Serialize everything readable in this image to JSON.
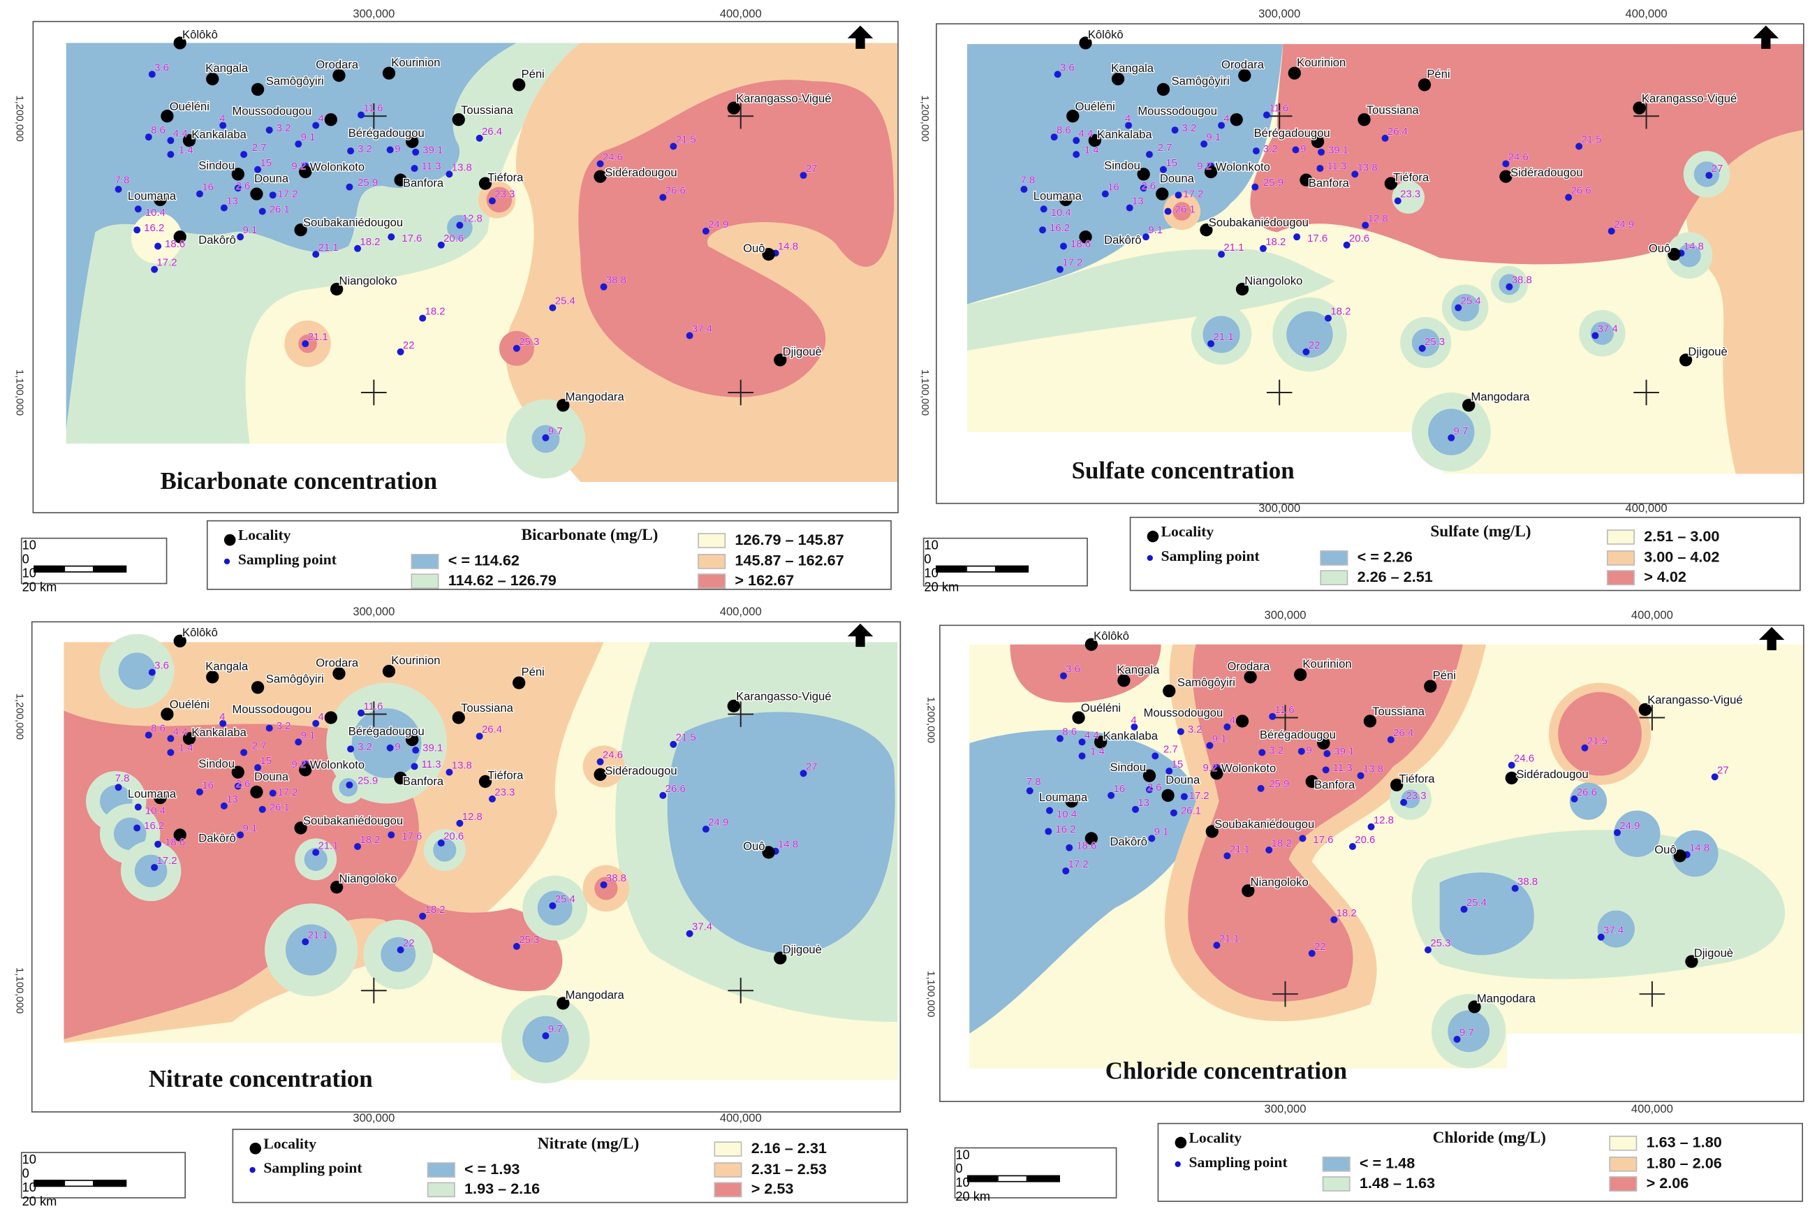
{
  "axes": {
    "x_ticks": [
      "300,000",
      "400,000"
    ],
    "y_ticks": [
      "1,200,000",
      "1,100,000"
    ]
  },
  "localities": [
    "Kôlôkô",
    "Kangala",
    "Orodara",
    "Kourinion",
    "Samôgôyiri",
    "Péni",
    "Ouéléni",
    "Moussodougou",
    "Toussiana",
    "Karangasso-Vigué",
    "Kankalaba",
    "Bérégadougou",
    "Sindou",
    "Wolonkoto",
    "Banfora",
    "Tiéfora",
    "Douna",
    "Sidéradougou",
    "Loumana",
    "Soubakaniédougou",
    "Dakôrô",
    "Ouô",
    "Niangoloko",
    "Djigouè",
    "Mangodara"
  ],
  "sampling_values": [
    "3.6",
    "4",
    "3.2",
    "4",
    "11.6",
    "8.6",
    "4.4",
    "1.4",
    "2.7",
    "9.1",
    "3.2",
    "9",
    "39.1",
    "26.4",
    "11.3",
    "13.8",
    "15",
    "9.2",
    "25.9",
    "7.8",
    "16",
    "2.6",
    "17.2",
    "10.4",
    "13",
    "26.1",
    "23.3",
    "24.6",
    "21.5",
    "27",
    "26.6",
    "16.2",
    "18.6",
    "9.1",
    "12.8",
    "17.6",
    "20.6",
    "21.1",
    "18.2",
    "17.2",
    "24.9",
    "14.8",
    "38.8",
    "25.4",
    "18.2",
    "21.1",
    "22",
    "25.3",
    "37.4",
    "9.7"
  ],
  "colors": {
    "c1": "#8fbad8",
    "c2": "#d3ead2",
    "c3": "#fcfad8",
    "c4": "#f8cfa4",
    "c5": "#e8898a"
  },
  "panels": [
    {
      "title": "Bicarbonate concentration",
      "legend": {
        "locality": "Locality",
        "sampling": "Sampling point",
        "param": "Bicarbonate (mg/L)",
        "classes": [
          "< = 114.62",
          "114.62  – 126.79",
          "126.79 – 145.87",
          "145.87 – 162.67",
          ">  162.67"
        ]
      },
      "scale": [
        "10",
        "0",
        "10",
        "20 km"
      ]
    },
    {
      "title": "Sulfate concentration",
      "legend": {
        "locality": "Locality",
        "sampling": "Sampling point",
        "param": "Sulfate (mg/L)",
        "classes": [
          "< = 2.26",
          "2.26  – 2.51",
          "2.51 – 3.00",
          "3.00 – 4.02",
          ">  4.02"
        ]
      },
      "scale": [
        "10",
        "0",
        "10",
        "20 km"
      ]
    },
    {
      "title": "Nitrate concentration",
      "legend": {
        "locality": "Locality",
        "sampling": "Sampling point",
        "param": "Nitrate (mg/L)",
        "classes": [
          "< = 1.93",
          "1.93 – 2.16",
          "2.16 – 2.31",
          "2.31 – 2.53",
          ">  2.53"
        ]
      },
      "scale": [
        "10",
        "0",
        "10",
        "20 km"
      ]
    },
    {
      "title": "Chloride concentration",
      "legend": {
        "locality": "Locality",
        "sampling": "Sampling point",
        "param": "Chloride (mg/L)",
        "classes": [
          "< = 1.48",
          "1.48 – 1.63",
          "1.63 – 1.80",
          "1.80 – 2.06",
          ">  2.06"
        ]
      },
      "scale": [
        "10",
        "0",
        "10",
        "20 km"
      ]
    }
  ]
}
